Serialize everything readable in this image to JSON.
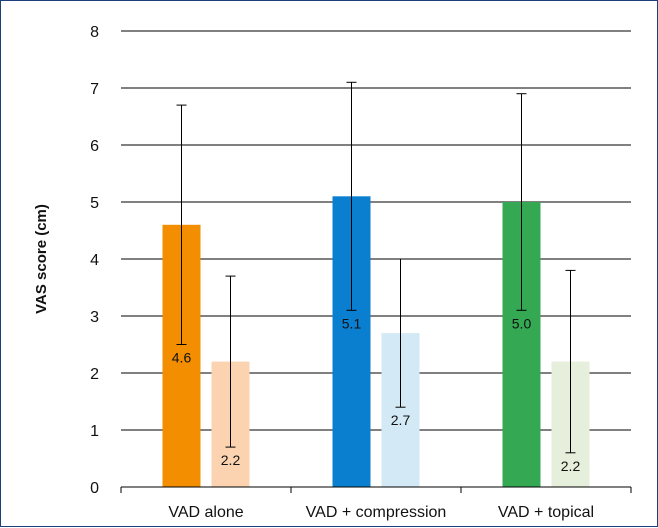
{
  "chart_data": {
    "type": "bar",
    "title": "",
    "xlabel": "",
    "ylabel": "VAS score (cm)",
    "ylim": [
      0,
      8
    ],
    "yticks": [
      0,
      1,
      2,
      3,
      4,
      5,
      6,
      7,
      8
    ],
    "grid": true,
    "legend": "none",
    "categories": [
      "VAD alone",
      "VAD + compression",
      "VAD + topical"
    ],
    "bars": [
      {
        "category": "VAD alone",
        "value": 4.6,
        "label": "4.6",
        "error_low": 2.5,
        "error_high": 6.7,
        "color": "#f28e00"
      },
      {
        "category": "VAD alone",
        "value": 2.2,
        "label": "2.2",
        "error_low": 0.7,
        "error_high": 3.7,
        "color": "#fbd3b0"
      },
      {
        "category": "VAD + compression",
        "value": 5.1,
        "label": "5.1",
        "error_low": 3.1,
        "error_high": 7.1,
        "color": "#0a7fd0"
      },
      {
        "category": "VAD + compression",
        "value": 2.7,
        "label": "2.7",
        "error_low": 1.4,
        "error_high": 4.0,
        "color": "#d3eaf6"
      },
      {
        "category": "VAD + topical",
        "value": 5.0,
        "label": "5.0",
        "error_low": 3.1,
        "error_high": 6.9,
        "color": "#34a853"
      },
      {
        "category": "VAD + topical",
        "value": 2.2,
        "label": "2.2",
        "error_low": 0.6,
        "error_high": 3.8,
        "color": "#e6efdc"
      }
    ]
  }
}
